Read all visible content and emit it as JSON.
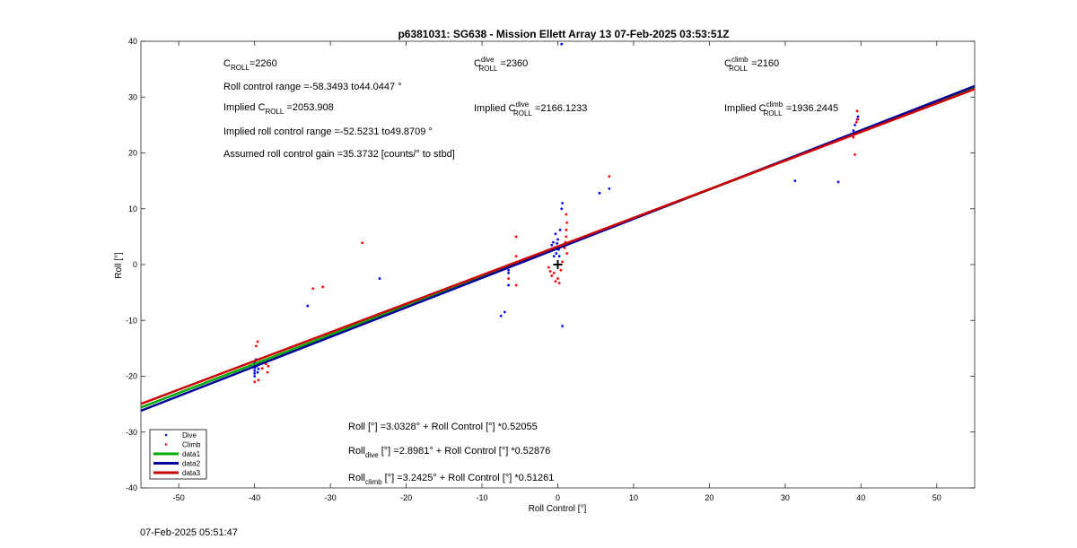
{
  "chart_data": {
    "type": "scatter",
    "title": "p6381031: SG638 - Mission Ellett Array 13 07-Feb-2025 03:53:51Z",
    "xlabel": "Roll Control [°]",
    "ylabel": "Roll [°]",
    "xlim": [
      -55,
      55
    ],
    "ylim": [
      -40,
      40
    ],
    "xticks": [
      -50,
      -40,
      -30,
      -20,
      -10,
      0,
      10,
      20,
      30,
      40,
      50
    ],
    "yticks": [
      -40,
      -30,
      -20,
      -10,
      0,
      10,
      20,
      30,
      40
    ],
    "grid": false,
    "legend_position": "bottom-left",
    "series": [
      {
        "name": "Dive",
        "kind": "points",
        "color": "#0000ff",
        "points": [
          [
            -40,
            -17.5
          ],
          [
            -40,
            -18
          ],
          [
            -40,
            -18.5
          ],
          [
            -40,
            -19
          ],
          [
            -40,
            -19.5
          ],
          [
            -40,
            -20
          ],
          [
            -39.8,
            -17
          ],
          [
            -39.7,
            -18.2
          ],
          [
            -39.6,
            -19.3
          ],
          [
            -39.5,
            -18.7
          ],
          [
            -39.3,
            -17.8
          ],
          [
            -38.5,
            -17.5
          ],
          [
            -33,
            -7.4
          ],
          [
            -23.5,
            -2.5
          ],
          [
            -7.5,
            -9.2
          ],
          [
            -7,
            -8.5
          ],
          [
            -6.5,
            -1
          ],
          [
            -6.5,
            -1.5
          ],
          [
            -6.5,
            -3.7
          ],
          [
            -1,
            2.4
          ],
          [
            -0.8,
            3.5
          ],
          [
            -0.6,
            4
          ],
          [
            -0.5,
            1.5
          ],
          [
            -0.4,
            3
          ],
          [
            -0.3,
            5.5
          ],
          [
            -0.2,
            2
          ],
          [
            -0.1,
            3.8
          ],
          [
            0,
            4.5
          ],
          [
            0.1,
            2.7
          ],
          [
            0.2,
            1.5
          ],
          [
            0.3,
            6.2
          ],
          [
            0.5,
            10
          ],
          [
            0.6,
            11
          ],
          [
            0.5,
            39.5
          ],
          [
            0.6,
            -11
          ],
          [
            5.5,
            12.8
          ],
          [
            6.8,
            13.6
          ],
          [
            31.3,
            15
          ],
          [
            37,
            14.8
          ],
          [
            39,
            24
          ],
          [
            39.2,
            25
          ],
          [
            39.5,
            26
          ],
          [
            39.6,
            26.5
          ]
        ]
      },
      {
        "name": "Climb",
        "kind": "points",
        "color": "#ff0000",
        "points": [
          [
            -40,
            -21
          ],
          [
            -39.8,
            -14.6
          ],
          [
            -39.6,
            -13.8
          ],
          [
            -39.5,
            -20.7
          ],
          [
            -39,
            -18.6
          ],
          [
            -38.5,
            -17.8
          ],
          [
            -38.3,
            -19.3
          ],
          [
            -38.2,
            -18.2
          ],
          [
            -32.3,
            -4.3
          ],
          [
            -31,
            -4
          ],
          [
            -25.8,
            3.9
          ],
          [
            -6.5,
            -2.5
          ],
          [
            -5.5,
            5
          ],
          [
            -5.5,
            1.5
          ],
          [
            -5.5,
            -3.7
          ],
          [
            -1.2,
            -0.5
          ],
          [
            -1,
            -1.2
          ],
          [
            -0.8,
            -2
          ],
          [
            -0.5,
            -1.5
          ],
          [
            -0.3,
            -3
          ],
          [
            0,
            -2.5
          ],
          [
            0.2,
            -3.3
          ],
          [
            0.4,
            -1
          ],
          [
            0.6,
            0.5
          ],
          [
            0.9,
            3
          ],
          [
            1,
            4
          ],
          [
            1.1,
            5
          ],
          [
            1.1,
            6.2
          ],
          [
            1.1,
            9
          ],
          [
            1.2,
            7.5
          ],
          [
            1.2,
            2
          ],
          [
            6.8,
            15.8
          ],
          [
            39,
            22.8
          ],
          [
            39.2,
            19.7
          ],
          [
            39.4,
            25.5
          ],
          [
            39.5,
            27.5
          ],
          [
            39.6,
            26
          ]
        ]
      },
      {
        "name": "data1",
        "kind": "line",
        "color": "#00aa00",
        "intercept": 3.0328,
        "slope": 0.52055
      },
      {
        "name": "data2",
        "kind": "line",
        "color": "#000099",
        "intercept": 2.8981,
        "slope": 0.52876
      },
      {
        "name": "data3",
        "kind": "line",
        "color": "#cc0000",
        "intercept": 3.2425,
        "slope": 0.51261
      }
    ],
    "marker": {
      "x": 0,
      "y": 0,
      "color": "#000000"
    },
    "annotations": {
      "c_roll": {
        "base": "C",
        "sub": "ROLL",
        "sup": "",
        "rest": "=2260"
      },
      "range": "Roll control range =-58.3493 to44.0447 °",
      "implied_c": {
        "pre": "Implied C",
        "sub": "ROLL",
        "sup": "",
        "rest": " =2053.908"
      },
      "implied_range": "Implied roll control range =-52.5231 to49.8709 °",
      "gain": "Assumed roll control gain =35.3732 [counts/° to stbd]",
      "c_dive": {
        "base": "C",
        "sub": "ROLL",
        "sup": "dive",
        "rest": " =2360"
      },
      "implied_dive": {
        "pre": "Implied C",
        "sub": "ROLL",
        "sup": "dive",
        "rest": " =2166.1233"
      },
      "c_climb": {
        "base": "C",
        "sub": "ROLL",
        "sup": "climb",
        "rest": " =2160"
      },
      "implied_climb": {
        "pre": "Implied C",
        "sub": "ROLL",
        "sup": "climb",
        "rest": " =1936.2445"
      },
      "eq_all": "Roll [°] =3.0328° + Roll Control [°] *0.52055",
      "eq_dive": {
        "pre": "Roll",
        "sub": "dive",
        "rest": " [°] =2.8981° + Roll Control [°] *0.52876"
      },
      "eq_climb": {
        "pre": "Roll",
        "sub": "climb",
        "rest": " [°] =3.2425° + Roll Control [°] *0.51261"
      }
    }
  },
  "footer": {
    "timestamp": "07-Feb-2025 05:51:47"
  }
}
